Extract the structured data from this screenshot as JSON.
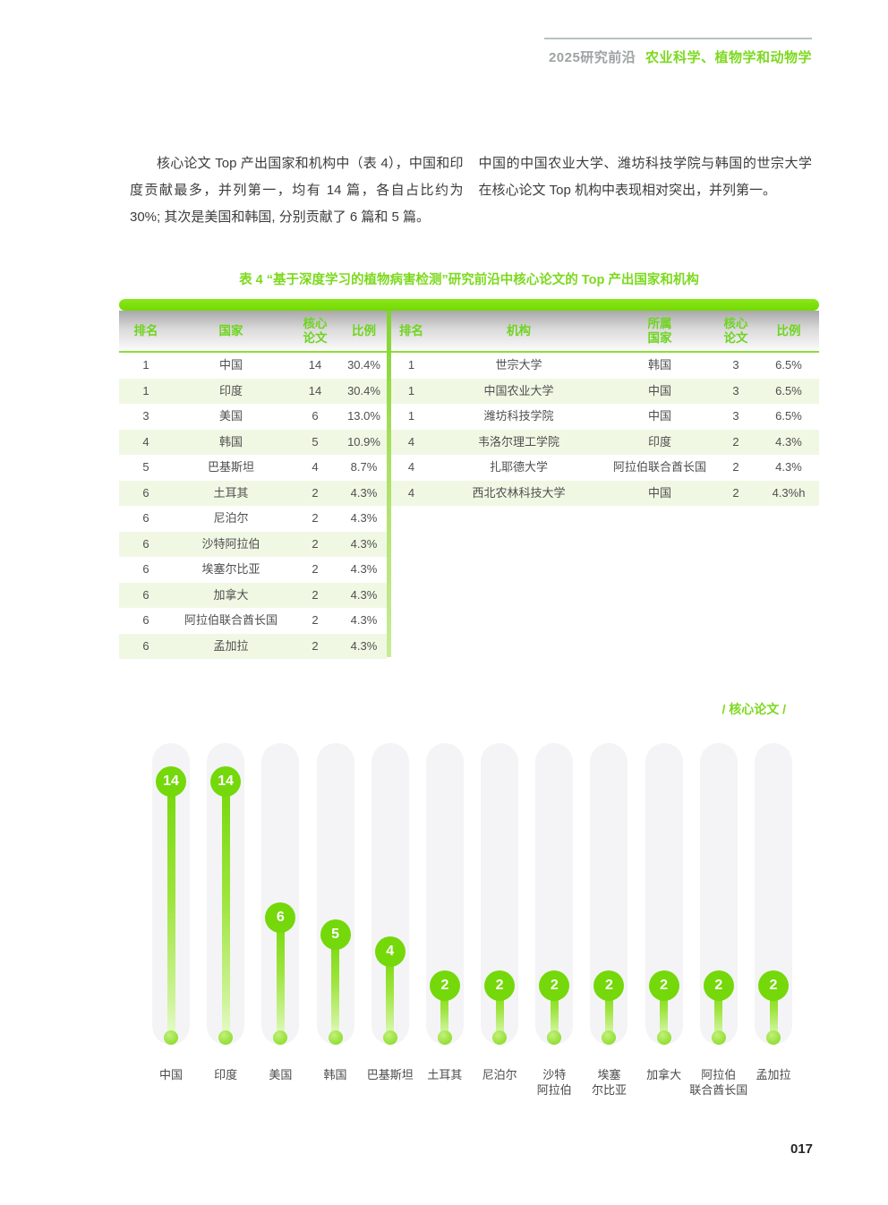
{
  "colors": {
    "accent_green": "#7CD91E",
    "bubble_green": "#74D80A",
    "row_stripe": "#F0F8E4",
    "track_gray": "#F4F4F6",
    "brand_gray": "#9DA3A3",
    "rule_gray": "#B7C2C2"
  },
  "header": {
    "brand": "2025研究前沿",
    "section": "农业科学、植物学和动物学"
  },
  "intro": {
    "left_paragraph": "核心论文 Top 产出国家和机构中（表 4），中国和印度贡献最多，并列第一，均有 14 篇，各自占比约为 30%; 其次是美国和韩国, 分别贡献了 6 篇和 5 篇。",
    "right_paragraph": "中国的中国农业大学、潍坊科技学院与韩国的世宗大学在核心论文 Top 机构中表现相对突出，并列第一。"
  },
  "table": {
    "title": "表 4  “基于深度学习的植物病害检测”研究前沿中核心论文的 Top 产出国家和机构",
    "countries": {
      "columns": [
        "排名",
        "国家",
        "核心\n论文",
        "比例"
      ],
      "rows": [
        [
          "1",
          "中国",
          "14",
          "30.4%"
        ],
        [
          "1",
          "印度",
          "14",
          "30.4%"
        ],
        [
          "3",
          "美国",
          "6",
          "13.0%"
        ],
        [
          "4",
          "韩国",
          "5",
          "10.9%"
        ],
        [
          "5",
          "巴基斯坦",
          "4",
          "8.7%"
        ],
        [
          "6",
          "土耳其",
          "2",
          "4.3%"
        ],
        [
          "6",
          "尼泊尔",
          "2",
          "4.3%"
        ],
        [
          "6",
          "沙特阿拉伯",
          "2",
          "4.3%"
        ],
        [
          "6",
          "埃塞尔比亚",
          "2",
          "4.3%"
        ],
        [
          "6",
          "加拿大",
          "2",
          "4.3%"
        ],
        [
          "6",
          "阿拉伯联合酋长国",
          "2",
          "4.3%"
        ],
        [
          "6",
          "孟加拉",
          "2",
          "4.3%"
        ]
      ]
    },
    "institutions": {
      "columns": [
        "排名",
        "机构",
        "所属\n国家",
        "核心\n论文",
        "比例"
      ],
      "rows": [
        [
          "1",
          "世宗大学",
          "韩国",
          "3",
          "6.5%"
        ],
        [
          "1",
          "中国农业大学",
          "中国",
          "3",
          "6.5%"
        ],
        [
          "1",
          "潍坊科技学院",
          "中国",
          "3",
          "6.5%"
        ],
        [
          "4",
          "韦洛尔理工学院",
          "印度",
          "2",
          "4.3%"
        ],
        [
          "4",
          "扎耶德大学",
          "阿拉伯联合酋长国",
          "2",
          "4.3%"
        ],
        [
          "4",
          "西北农林科技大学",
          "中国",
          "2",
          "4.3%h"
        ]
      ]
    }
  },
  "chart_data": {
    "type": "lollipop-bar",
    "title": "",
    "legend": "/ 核心论文 /",
    "categories": [
      "中国",
      "印度",
      "美国",
      "韩国",
      "巴基斯坦",
      "土耳其",
      "尼泊尔",
      "沙特阿拉伯",
      "埃塞尔比亚",
      "加拿大",
      "阿拉伯联合酋长国",
      "孟加拉"
    ],
    "label_lines": [
      [
        "中国"
      ],
      [
        "印度"
      ],
      [
        "美国"
      ],
      [
        "韩国"
      ],
      [
        "巴基斯坦"
      ],
      [
        "土耳其"
      ],
      [
        "尼泊尔"
      ],
      [
        "沙特",
        "阿拉伯"
      ],
      [
        "埃塞",
        "尔比亚"
      ],
      [
        "加拿大"
      ],
      [
        "阿拉伯",
        "联合酋长国"
      ],
      [
        "孟加拉"
      ]
    ],
    "values": [
      14,
      14,
      6,
      5,
      4,
      2,
      2,
      2,
      2,
      2,
      2,
      2
    ],
    "xlabel": "",
    "ylabel": "核心论文",
    "ylim": [
      0,
      16
    ],
    "grid": false,
    "legend_position": "top-right"
  },
  "footer": {
    "page_number": "017"
  }
}
